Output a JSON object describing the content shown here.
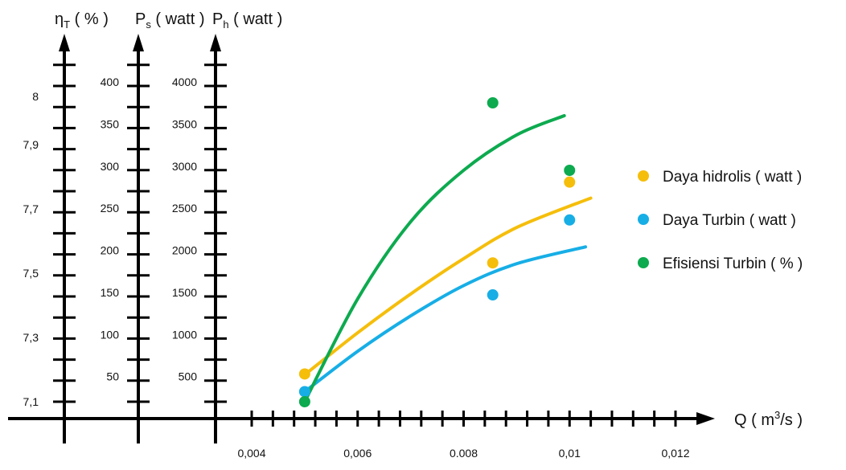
{
  "chart_data": {
    "type": "scatter",
    "x_axis": {
      "label_main": "Q ( m",
      "label_sup": "3",
      "label_tail": "/s )",
      "tick_labels": [
        "0,004",
        "0,006",
        "0.008",
        "0,01",
        "0,012"
      ],
      "tick_values": [
        0.004,
        0.006,
        0.008,
        0.01,
        0.012
      ],
      "range": [
        0.0035,
        0.0125
      ]
    },
    "y_axes": [
      {
        "id": "eff",
        "label_main": "η",
        "label_sub": "T",
        "label_tail": " ( % )",
        "tick_labels": [
          "7,1",
          "7,3",
          "7,5",
          "7,7",
          "7,9",
          "8"
        ],
        "tick_values": [
          7.1,
          7.3,
          7.5,
          7.7,
          7.9,
          8.05
        ],
        "range": [
          7.1,
          8.05
        ]
      },
      {
        "id": "ps",
        "label_main": "P",
        "label_sub": "s",
        "label_tail": " ( watt )",
        "tick_labels": [
          "50",
          "100",
          "150",
          "200",
          "250",
          "300",
          "350",
          "400"
        ],
        "tick_values": [
          50,
          100,
          150,
          200,
          250,
          300,
          350,
          400
        ],
        "range": [
          0,
          400
        ]
      },
      {
        "id": "ph",
        "label_main": "P",
        "label_sub": "h",
        "label_tail": " ( watt )",
        "tick_labels": [
          "500",
          "1000",
          "1500",
          "2000",
          "2500",
          "3000",
          "3500",
          "4000"
        ],
        "tick_values": [
          500,
          1000,
          1500,
          2000,
          2500,
          3000,
          3500,
          4000
        ],
        "range": [
          0,
          4000
        ]
      }
    ],
    "series": [
      {
        "name": "Daya hidrolis ( watt )",
        "axis": "ph",
        "color": "#F5BE0B",
        "points": [
          [
            0.005,
            530
          ],
          [
            0.00855,
            1850
          ],
          [
            0.01,
            2810
          ]
        ],
        "trend": [
          [
            0.005,
            520
          ],
          [
            0.006,
            1020
          ],
          [
            0.007,
            1480
          ],
          [
            0.008,
            1900
          ],
          [
            0.009,
            2270
          ],
          [
            0.0104,
            2620
          ]
        ]
      },
      {
        "name": "Daya Turbin ( watt )",
        "axis": "ps",
        "color": "#17AEE6",
        "points": [
          [
            0.005,
            32
          ],
          [
            0.00855,
            147
          ],
          [
            0.01,
            236
          ]
        ],
        "trend": [
          [
            0.005,
            32
          ],
          [
            0.006,
            80
          ],
          [
            0.007,
            122
          ],
          [
            0.008,
            158
          ],
          [
            0.009,
            184
          ],
          [
            0.0103,
            204
          ]
        ]
      },
      {
        "name": "Efisiensi Turbin ( % )",
        "axis": "eff",
        "color": "#0DAA4F",
        "points": [
          [
            0.005,
            7.1
          ],
          [
            0.00855,
            8.03
          ],
          [
            0.01,
            7.82
          ]
        ],
        "trend": [
          [
            0.005,
            7.1
          ],
          [
            0.006,
            7.42
          ],
          [
            0.007,
            7.66
          ],
          [
            0.008,
            7.82
          ],
          [
            0.009,
            7.93
          ],
          [
            0.0099,
            7.99
          ]
        ]
      }
    ],
    "legend_position": "right",
    "grid": false
  }
}
